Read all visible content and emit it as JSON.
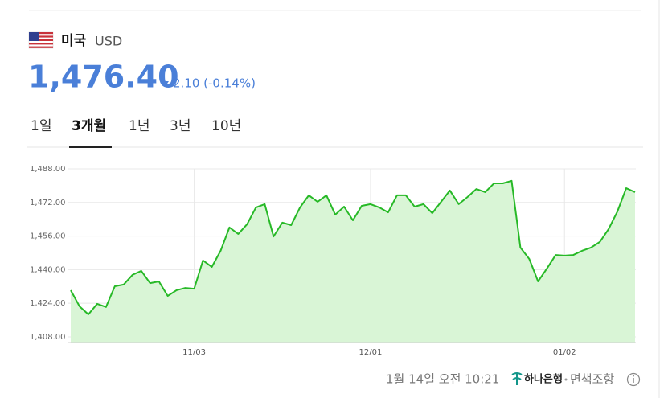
{
  "header": {
    "country": "미국",
    "currency": "USD",
    "price": "1,476.40",
    "change": "2.10 (-0.14%)"
  },
  "tabs": [
    "1일",
    "3개월",
    "1년",
    "3년",
    "10년"
  ],
  "chart_data": {
    "type": "line",
    "categories": [
      null,
      null,
      null,
      null,
      null,
      null,
      null,
      null,
      null,
      null,
      null,
      null,
      null,
      null,
      "11/03",
      null,
      null,
      null,
      null,
      null,
      null,
      null,
      null,
      null,
      null,
      null,
      null,
      null,
      null,
      null,
      null,
      null,
      null,
      null,
      "12/01",
      null,
      null,
      null,
      null,
      null,
      null,
      null,
      null,
      null,
      null,
      null,
      null,
      null,
      null,
      null,
      null,
      null,
      null,
      null,
      null,
      null,
      "01/02",
      null,
      null,
      null,
      null,
      null,
      null,
      null,
      null
    ],
    "values": [
      1430.2,
      1422.5,
      1418.7,
      1423.7,
      1422.2,
      1432.1,
      1432.9,
      1437.5,
      1439.4,
      1433.6,
      1434.4,
      1427.5,
      1430.2,
      1431.3,
      1430.9,
      1444.4,
      1441.3,
      1449.0,
      1460.1,
      1457.0,
      1461.6,
      1469.6,
      1471.2,
      1455.8,
      1462.4,
      1461.2,
      1469.6,
      1475.4,
      1472.3,
      1475.4,
      1466.2,
      1470.0,
      1463.5,
      1470.4,
      1471.2,
      1469.6,
      1467.3,
      1475.4,
      1475.4,
      1470.0,
      1471.2,
      1466.9,
      1472.3,
      1477.7,
      1471.2,
      1474.6,
      1478.4,
      1476.9,
      1481.1,
      1481.1,
      1482.3,
      1450.5,
      1445.1,
      1434.4,
      1440.5,
      1447.0,
      1446.7,
      1447.0,
      1449.0,
      1450.5,
      1453.2,
      1459.3,
      1467.7,
      1478.8,
      1476.9
    ],
    "color": "#27b927",
    "ylim": [
      1405.3,
      1488
    ],
    "yticks": [
      {
        "value": 1408,
        "label": "1,408.00"
      },
      {
        "value": 1424,
        "label": "1,424.00"
      },
      {
        "value": 1440,
        "label": "1,440.00"
      },
      {
        "value": 1456,
        "label": "1,456.00"
      },
      {
        "value": 1472,
        "label": "1,472.00"
      },
      {
        "value": 1488,
        "label": "1,488.00"
      }
    ],
    "grid": true
  },
  "footer": {
    "timestamp": "1월 14일 오전 10:21",
    "bank": "하나은행",
    "disclaimer": "면책조항"
  }
}
